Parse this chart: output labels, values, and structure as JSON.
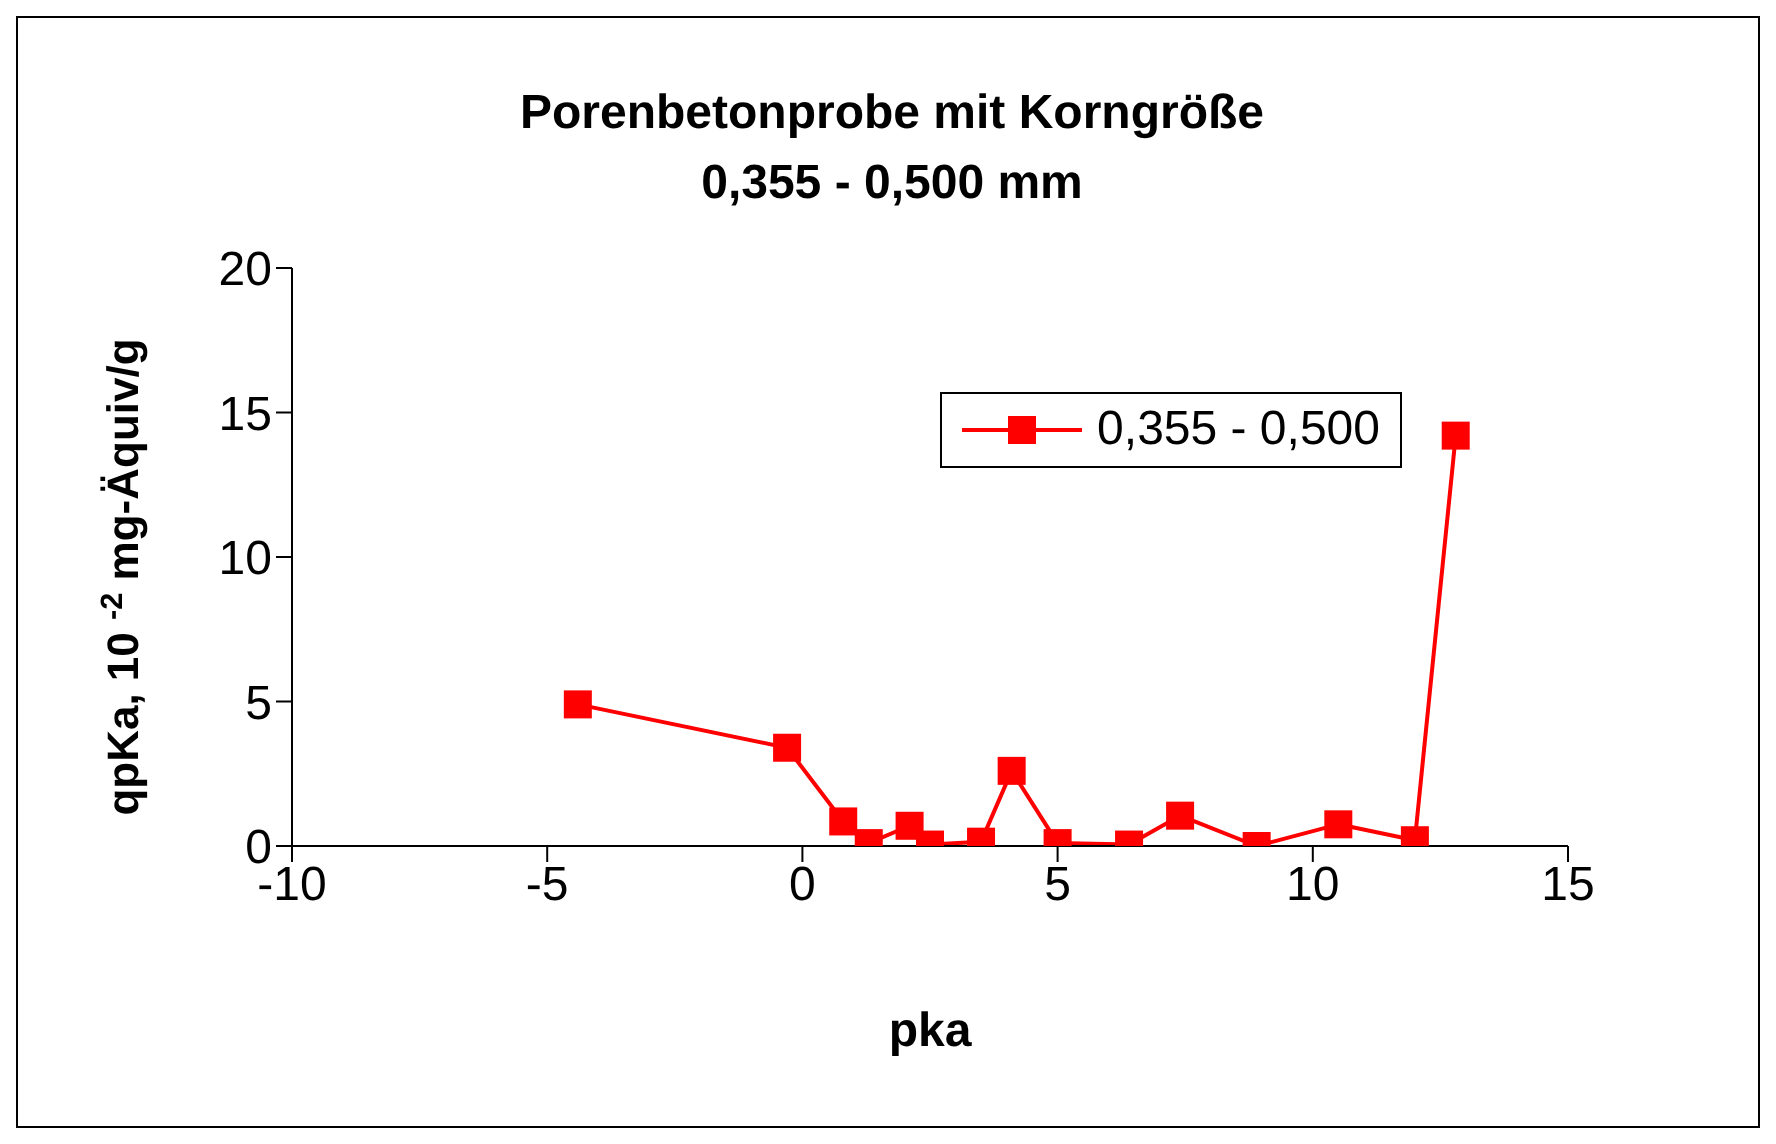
{
  "chart_data": {
    "type": "line",
    "title": "Porenbetonprobe mit Korngröße\n0,355 - 0,500 mm",
    "xlabel": "pka",
    "ylabel": "qpKa, 10 $^{-2}$ mg-Äquiv/g",
    "x": [
      -4.4,
      -0.3,
      0.8,
      1.3,
      2.1,
      2.5,
      3.5,
      4.1,
      5.0,
      6.4,
      7.4,
      8.9,
      10.5,
      12.0,
      12.8
    ],
    "series": [
      {
        "name": "0,355 - 0,500",
        "color": "#ff0000",
        "values": [
          4.9,
          3.4,
          0.85,
          0.1,
          0.7,
          0.05,
          0.15,
          2.6,
          0.1,
          0.05,
          1.05,
          0.0,
          0.75,
          0.2,
          14.2
        ]
      }
    ],
    "xlim": [
      -10,
      15
    ],
    "xticks": [
      -10,
      -5,
      0,
      5,
      10,
      15
    ],
    "ylim": [
      0,
      20
    ],
    "yticks": [
      0,
      5,
      10,
      15,
      20
    ],
    "grid": false,
    "legend": "top right",
    "marker": "square",
    "line_style": "solid"
  }
}
